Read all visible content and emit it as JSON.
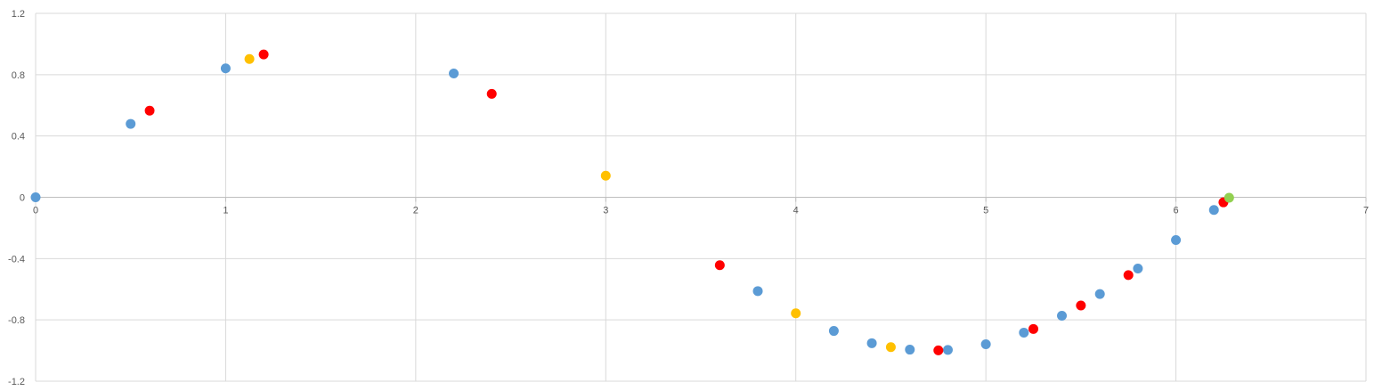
{
  "chart_data": {
    "type": "scatter",
    "title": "",
    "xlabel": "",
    "ylabel": "",
    "xlim": [
      0,
      7
    ],
    "ylim": [
      -1.2,
      1.2
    ],
    "x_ticks": [
      0,
      1,
      2,
      3,
      4,
      5,
      6,
      7
    ],
    "y_ticks": [
      1.2,
      0.8,
      0.4,
      0,
      -0.4,
      -0.8,
      -1.2
    ],
    "x_tick_labels": [
      "0",
      "1",
      "2",
      "3",
      "4",
      "5",
      "6",
      "7"
    ],
    "y_tick_labels": [
      "1.2",
      "0.8",
      "0.4",
      "0",
      "-0.4",
      "-0.8",
      "-1.2"
    ],
    "grid": true,
    "legend": "none",
    "series": [
      {
        "color": "#5B9BD5",
        "points": [
          [
            0,
            0
          ],
          [
            0.5,
            0.479
          ],
          [
            1,
            0.841
          ],
          [
            2.2,
            0.808
          ],
          [
            3.8,
            -0.612
          ],
          [
            4.2,
            -0.872
          ],
          [
            4.4,
            -0.952
          ],
          [
            4.6,
            -0.994
          ],
          [
            4.8,
            -0.996
          ],
          [
            5.0,
            -0.959
          ],
          [
            5.2,
            -0.883
          ],
          [
            5.4,
            -0.773
          ],
          [
            5.6,
            -0.631
          ],
          [
            5.8,
            -0.465
          ],
          [
            6.0,
            -0.279
          ],
          [
            6.2,
            -0.083
          ]
        ]
      },
      {
        "color": "#FF0000",
        "points": [
          [
            0.6,
            0.565
          ],
          [
            1.2,
            0.932
          ],
          [
            2.4,
            0.675
          ],
          [
            3.6,
            -0.443
          ],
          [
            4.75,
            -0.999
          ],
          [
            5.25,
            -0.859
          ],
          [
            5.5,
            -0.706
          ],
          [
            5.75,
            -0.508
          ],
          [
            6.25,
            -0.033
          ]
        ]
      },
      {
        "color": "#FFC000",
        "points": [
          [
            1.125,
            0.902
          ],
          [
            3.0,
            0.141
          ],
          [
            4.0,
            -0.757
          ],
          [
            4.5,
            -0.978
          ]
        ]
      },
      {
        "color": "#92D050",
        "points": [
          [
            6.28,
            -0.003
          ]
        ]
      }
    ]
  }
}
